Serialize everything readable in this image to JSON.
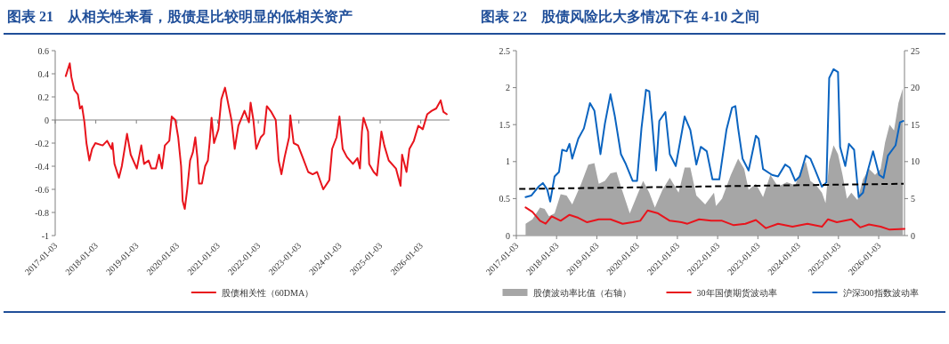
{
  "chart_data": [
    {
      "type": "line",
      "title": "图表 21　从相关性来看，股债是比较明显的低相关资产",
      "xlim": [
        "2017-01-03",
        "2026-09-19"
      ],
      "xticks": [
        "2017-01-03",
        "2018-01-03",
        "2019-01-03",
        "2020-01-03",
        "2021-01-03",
        "2022-01-03",
        "2023-01-03",
        "2024-01-03",
        "2025-01-03",
        "2026-01-03"
      ],
      "ylim": [
        -1,
        0.6
      ],
      "yticks": [
        -1,
        -0.8,
        -0.6,
        -0.4,
        -0.2,
        0,
        0.2,
        0.4,
        0.6
      ],
      "legend": "bottom",
      "series": [
        {
          "name": "股债相关性（60DMA）",
          "color": "#e8141c",
          "x": [
            "2017-04-08",
            "2017-05-14",
            "2017-05-29",
            "2017-06-24",
            "2017-07-26",
            "2017-08-14",
            "2017-09-01",
            "2017-09-23",
            "2017-10-11",
            "2017-11-06",
            "2017-12-01",
            "2017-12-30",
            "2018-03-06",
            "2018-04-15",
            "2018-05-25",
            "2018-06-02",
            "2018-06-20",
            "2018-07-30",
            "2018-08-25",
            "2018-10-11",
            "2018-11-13",
            "2019-01-07",
            "2019-02-16",
            "2019-03-13",
            "2019-04-23",
            "2019-05-18",
            "2019-06-27",
            "2019-07-26",
            "2019-08-21",
            "2019-09-16",
            "2019-10-26",
            "2019-11-17",
            "2019-12-19",
            "2020-01-14",
            "2020-02-09",
            "2020-02-23",
            "2020-03-13",
            "2020-04-04",
            "2020-04-30",
            "2020-05-25",
            "2020-06-16",
            "2020-07-05",
            "2020-07-19",
            "2020-08-14",
            "2020-09-12",
            "2020-10-07",
            "2020-10-22",
            "2020-11-09",
            "2020-12-01",
            "2021-01-10",
            "2021-02-05",
            "2021-03-10",
            "2021-04-12",
            "2021-05-07",
            "2021-06-05",
            "2021-07-08",
            "2021-09-01",
            "2021-10-11",
            "2021-10-26",
            "2021-11-20",
            "2021-12-16",
            "2022-01-25",
            "2022-02-23",
            "2022-03-21",
            "2022-04-30",
            "2022-06-09",
            "2022-07-05",
            "2022-07-30",
            "2022-08-28",
            "2022-10-07",
            "2022-10-18",
            "2022-11-17",
            "2022-12-27",
            "2023-02-05",
            "2023-03-28",
            "2023-05-07",
            "2023-06-16",
            "2023-08-10",
            "2023-10-04",
            "2023-10-29",
            "2023-12-08",
            "2024-01-03",
            "2024-02-01",
            "2024-03-10",
            "2024-05-03",
            "2024-06-13",
            "2024-07-05",
            "2024-07-23",
            "2024-08-06",
            "2024-09-16",
            "2024-09-26",
            "2024-11-06",
            "2024-12-05",
            "2025-01-14",
            "2025-02-09",
            "2025-03-21",
            "2025-05-25",
            "2025-07-05",
            "2025-07-19",
            "2025-08-28",
            "2025-09-23",
            "2025-11-02",
            "2025-12-12",
            "2026-01-21",
            "2026-03-02",
            "2026-04-12",
            "2026-05-22",
            "2026-07-01",
            "2026-07-26",
            "2026-08-25"
          ],
          "values": [
            0.38,
            0.49,
            0.37,
            0.26,
            0.22,
            0.1,
            0.12,
            -0.02,
            -0.2,
            -0.35,
            -0.25,
            -0.2,
            -0.22,
            -0.18,
            -0.25,
            -0.2,
            -0.38,
            -0.5,
            -0.4,
            -0.12,
            -0.3,
            -0.42,
            -0.22,
            -0.38,
            -0.35,
            -0.42,
            -0.42,
            -0.3,
            -0.42,
            -0.22,
            -0.18,
            0.03,
            0,
            -0.15,
            -0.4,
            -0.7,
            -0.77,
            -0.6,
            -0.35,
            -0.28,
            -0.15,
            -0.33,
            -0.55,
            -0.55,
            -0.4,
            -0.35,
            -0.2,
            0.02,
            -0.2,
            -0.08,
            0.18,
            0.28,
            0.12,
            0,
            -0.25,
            -0.05,
            0.08,
            -0.02,
            0.15,
            0,
            -0.25,
            -0.15,
            -0.12,
            0.12,
            0.07,
            0,
            -0.35,
            -0.47,
            -0.32,
            -0.15,
            0.04,
            -0.2,
            -0.22,
            -0.32,
            -0.45,
            -0.47,
            -0.45,
            -0.6,
            -0.52,
            -0.25,
            -0.15,
            0.03,
            -0.25,
            -0.32,
            -0.38,
            -0.33,
            -0.42,
            -0.1,
            0.02,
            -0.1,
            -0.38,
            -0.45,
            -0.48,
            -0.1,
            -0.22,
            -0.35,
            -0.42,
            -0.57,
            -0.3,
            -0.45,
            -0.25,
            -0.18,
            -0.05,
            -0.08,
            0.05,
            0.08,
            0.1,
            0.17,
            0.07,
            0.05
          ]
        }
      ]
    },
    {
      "type": "line",
      "title": "图表 22　股债风险比大多情况下在 4-10 之间",
      "xlim": [
        "2017-01-03",
        "2026-08-25"
      ],
      "xticks": [
        "2017-01-03",
        "2018-01-03",
        "2019-01-03",
        "2020-01-03",
        "2021-01-03",
        "2022-01-03",
        "2023-01-03",
        "2024-01-03",
        "2025-01-03",
        "2026-01-03"
      ],
      "ylim": [
        0,
        2.5
      ],
      "yticks": [
        0,
        0.5,
        1,
        1.5,
        2,
        2.5
      ],
      "y2lim": [
        0,
        25
      ],
      "y2ticks": [
        0,
        5,
        10,
        15,
        20,
        25
      ],
      "legend": "bottom",
      "series": [
        {
          "name": "股债波动率比值（右轴）",
          "type": "area",
          "axis": "y2",
          "color": "#a6a6a6",
          "x": [
            "2017-03-28",
            "2017-05-29",
            "2017-08-06",
            "2017-09-16",
            "2017-10-26",
            "2017-12-16",
            "2018-02-09",
            "2018-04-04",
            "2018-05-25",
            "2018-08-14",
            "2018-10-18",
            "2018-12-12",
            "2019-01-21",
            "2019-03-17",
            "2019-05-07",
            "2019-07-01",
            "2019-08-10",
            "2019-10-29",
            "2020-01-03",
            "2020-02-27",
            "2020-04-23",
            "2020-06-13",
            "2020-08-21",
            "2020-10-26",
            "2021-01-14",
            "2021-03-10",
            "2021-04-30",
            "2021-06-24",
            "2021-09-12",
            "2021-12-01",
            "2021-12-19",
            "2022-02-12",
            "2022-05-03",
            "2022-07-08",
            "2022-09-01",
            "2022-10-11",
            "2022-12-16",
            "2023-02-19",
            "2023-04-26",
            "2023-07-05",
            "2023-09-23",
            "2023-12-08",
            "2024-02-01",
            "2024-03-13",
            "2024-04-23",
            "2024-06-16",
            "2024-08-06",
            "2024-09-08",
            "2024-10-11",
            "2024-11-20",
            "2024-12-30",
            "2025-02-09",
            "2025-03-21",
            "2025-04-30",
            "2025-06-24",
            "2025-08-14",
            "2025-10-07",
            "2025-12-01",
            "2026-01-21",
            "2026-03-02",
            "2026-04-12",
            "2026-05-22",
            "2026-07-01",
            "2026-08-10"
          ],
          "values": [
            1.6,
            2.2,
            3.8,
            3.6,
            2.6,
            3.0,
            5.6,
            5.4,
            4.2,
            7.0,
            9.6,
            9.8,
            7.0,
            7.4,
            8.4,
            8.6,
            6.6,
            3.0,
            5.4,
            7.4,
            5.8,
            3.8,
            6.2,
            7.8,
            5.8,
            9.2,
            9.2,
            5.4,
            4.2,
            5.8,
            4.0,
            5.0,
            8.2,
            10.4,
            9.0,
            6.2,
            7.0,
            5.2,
            8.2,
            6.6,
            7.2,
            6.8,
            9.0,
            10.0,
            7.4,
            6.8,
            5.8,
            4.4,
            10.0,
            12.2,
            11.0,
            8.2,
            5.0,
            5.8,
            4.8,
            7.6,
            9.0,
            8.2,
            9.0,
            12.6,
            15.0,
            14.2,
            17.9,
            19.9
          ]
        },
        {
          "name": "30年国债期货波动率",
          "color": "#e8141c",
          "x": [
            "2017-03-28",
            "2017-05-29",
            "2017-08-06",
            "2017-09-26",
            "2017-11-20",
            "2018-02-09",
            "2018-04-30",
            "2018-07-19",
            "2018-10-07",
            "2019-01-21",
            "2019-05-07",
            "2019-08-25",
            "2019-11-24",
            "2020-02-01",
            "2020-04-08",
            "2020-07-12",
            "2020-10-26",
            "2021-02-09",
            "2021-04-04",
            "2021-07-19",
            "2021-11-06",
            "2022-02-12",
            "2022-05-29",
            "2022-09-12",
            "2022-12-16",
            "2023-03-17",
            "2023-07-05",
            "2023-11-13",
            "2024-03-28",
            "2024-08-06",
            "2024-09-30",
            "2024-12-19",
            "2025-04-30",
            "2025-07-19",
            "2025-10-07",
            "2026-01-21",
            "2026-04-12",
            "2026-08-25"
          ],
          "values": [
            0.38,
            0.32,
            0.2,
            0.16,
            0.26,
            0.2,
            0.28,
            0.24,
            0.18,
            0.22,
            0.22,
            0.16,
            0.18,
            0.2,
            0.34,
            0.3,
            0.2,
            0.18,
            0.16,
            0.22,
            0.2,
            0.2,
            0.14,
            0.16,
            0.21,
            0.1,
            0.16,
            0.12,
            0.16,
            0.12,
            0.22,
            0.18,
            0.22,
            0.11,
            0.15,
            0.12,
            0.08,
            0.09
          ]
        },
        {
          "name": "沪深300指数波动率",
          "color": "#0b64c0",
          "x": [
            "2017-03-28",
            "2017-05-18",
            "2017-07-23",
            "2017-09-01",
            "2017-10-11",
            "2017-11-06",
            "2017-12-16",
            "2018-01-25",
            "2018-02-23",
            "2018-04-04",
            "2018-04-30",
            "2018-05-25",
            "2018-07-19",
            "2018-09-08",
            "2018-11-02",
            "2018-12-12",
            "2019-02-05",
            "2019-03-17",
            "2019-05-07",
            "2019-06-16",
            "2019-08-10",
            "2019-09-19",
            "2019-11-24",
            "2020-01-03",
            "2020-02-12",
            "2020-03-24",
            "2020-04-23",
            "2020-05-18",
            "2020-06-24",
            "2020-07-23",
            "2020-09-16",
            "2020-10-26",
            "2020-12-19",
            "2021-03-10",
            "2021-04-30",
            "2021-06-24",
            "2021-08-03",
            "2021-09-26",
            "2021-11-17",
            "2022-01-18",
            "2022-03-24",
            "2022-05-14",
            "2022-06-13",
            "2022-07-08",
            "2022-08-17",
            "2022-10-11",
            "2022-12-16",
            "2023-01-10",
            "2023-02-19",
            "2023-05-11",
            "2023-07-05",
            "2023-09-08",
            "2023-10-18",
            "2023-12-08",
            "2024-01-18",
            "2024-03-13",
            "2024-04-23",
            "2024-06-02",
            "2024-08-06",
            "2024-09-16",
            "2024-10-11",
            "2024-11-20",
            "2024-12-30",
            "2025-01-18",
            "2025-03-06",
            "2025-04-08",
            "2025-05-25",
            "2025-07-05",
            "2025-08-14",
            "2025-09-23",
            "2025-11-13",
            "2026-01-07",
            "2026-02-16",
            "2026-03-28",
            "2026-06-05",
            "2026-07-15",
            "2026-08-14"
          ],
          "values": [
            0.52,
            0.54,
            0.66,
            0.71,
            0.62,
            0.46,
            0.8,
            0.86,
            1.16,
            1.14,
            1.24,
            1.04,
            1.31,
            1.45,
            1.79,
            1.69,
            1.1,
            1.51,
            1.91,
            1.61,
            1.1,
            0.98,
            0.74,
            0.74,
            1.45,
            1.97,
            1.95,
            1.55,
            0.88,
            1.55,
            1.67,
            1.1,
            0.94,
            1.61,
            1.43,
            0.96,
            1.2,
            1.14,
            0.76,
            0.76,
            1.43,
            1.73,
            1.75,
            1.45,
            1.04,
            0.88,
            1.35,
            1.31,
            0.9,
            0.82,
            0.8,
            0.96,
            0.92,
            0.74,
            0.8,
            1.08,
            1.04,
            0.9,
            0.66,
            0.72,
            2.13,
            2.25,
            2.21,
            1.2,
            0.94,
            1.24,
            1.16,
            0.52,
            0.58,
            0.86,
            1.14,
            0.82,
            0.78,
            1.08,
            1.22,
            1.53,
            1.55
          ]
        },
        {
          "type": "line",
          "axis": "y2",
          "color": "#000000",
          "line_style": "dashed",
          "x": [
            "2017-01-29",
            "2026-08-17"
          ],
          "values": [
            6.3,
            7.0
          ]
        }
      ]
    }
  ]
}
